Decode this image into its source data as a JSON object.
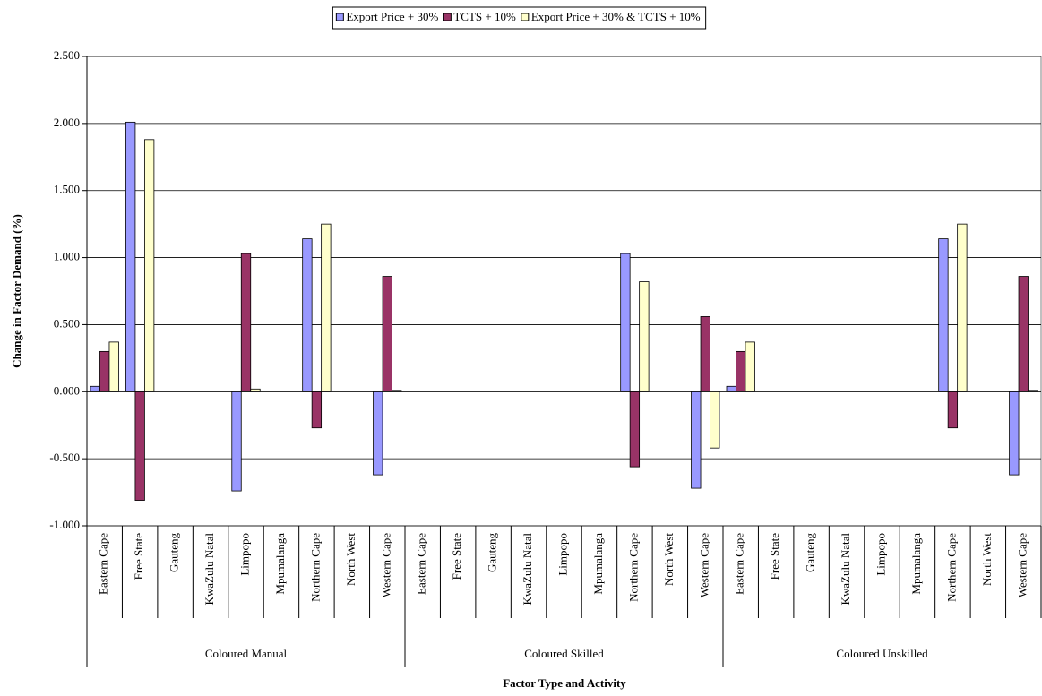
{
  "chart_data": {
    "type": "bar",
    "y_label": "Change in Factor Demand (%)",
    "x_label": "Factor Type and Activity",
    "categories": [
      "Eastern Cape",
      "Free State",
      "Gauteng",
      "KwaZulu Natal",
      "Limpopo",
      "Mpumalanga",
      "Northern Cape",
      "North West",
      "Western Cape",
      "Eastern Cape",
      "Free State",
      "Gauteng",
      "KwaZulu Natal",
      "Limpopo",
      "Mpumalanga",
      "Northern Cape",
      "North West",
      "Western Cape",
      "Eastern Cape",
      "Free State",
      "Gauteng",
      "KwaZulu Natal",
      "Limpopo",
      "Mpumalanga",
      "Northern Cape",
      "North West",
      "Western Cape"
    ],
    "groups": [
      "Coloured Manual",
      "Coloured Skilled",
      "Coloured Unskilled"
    ],
    "series": [
      {
        "name": "Export Price + 30%",
        "color": "#9999ff",
        "values": [
          0.04,
          2.01,
          0,
          0,
          -0.74,
          0,
          1.14,
          0,
          -0.62,
          0,
          0,
          0,
          0,
          0,
          0,
          1.03,
          0,
          -0.72,
          0.04,
          0,
          0,
          0,
          0,
          0,
          1.14,
          0,
          -0.62
        ]
      },
      {
        "name": "TCTS + 10%",
        "color": "#993366",
        "values": [
          0.3,
          -0.81,
          0,
          0,
          1.03,
          0,
          -0.27,
          0,
          0.86,
          0,
          0,
          0,
          0,
          0,
          0,
          -0.56,
          0,
          0.56,
          0.3,
          0,
          0,
          0,
          0,
          0,
          -0.27,
          0,
          0.86
        ]
      },
      {
        "name": "Export Price + 30% & TCTS + 10%",
        "color": "#ffffcc",
        "values": [
          0.37,
          1.88,
          0,
          0,
          0.02,
          0,
          1.25,
          0,
          0.01,
          0,
          0,
          0,
          0,
          0,
          0,
          0.82,
          0,
          -0.42,
          0.37,
          0,
          0,
          0,
          0,
          0,
          1.25,
          0,
          0.01
        ]
      }
    ],
    "ylim": [
      -1,
      2.5
    ],
    "yticks": [
      {
        "value": -1,
        "label": "-1.000"
      },
      {
        "value": -0.5,
        "label": "-0.500"
      },
      {
        "value": 0,
        "label": "0.000"
      },
      {
        "value": 0.5,
        "label": "0.500"
      },
      {
        "value": 1,
        "label": "1.000"
      },
      {
        "value": 1.5,
        "label": "1.500"
      },
      {
        "value": 2,
        "label": "2.000"
      },
      {
        "value": 2.5,
        "label": "2.500"
      }
    ],
    "grid": true,
    "legend": "top"
  }
}
